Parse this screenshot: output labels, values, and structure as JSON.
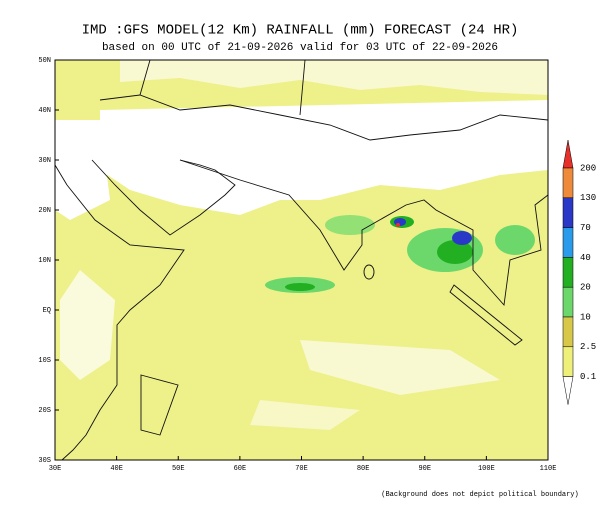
{
  "header": {
    "title": "IMD :GFS MODEL(12 Km) RAINFALL (mm) FORECAST (24 HR)",
    "subtitle": "based on 00 UTC of 21-09-2026 valid for 03 UTC of 22-09-2026"
  },
  "map": {
    "lat_labels": [
      "50N",
      "40N",
      "30N",
      "20N",
      "10N",
      "EQ",
      "10S",
      "20S",
      "30S"
    ],
    "lon_labels": [
      "30E",
      "40E",
      "50E",
      "60E",
      "70E",
      "80E",
      "90E",
      "100E",
      "110E"
    ]
  },
  "colorbar": {
    "levels": [
      200,
      130,
      70,
      40,
      20,
      10,
      2.5,
      0.1
    ],
    "colors": [
      "#e8302a",
      "#ee8a3a",
      "#2a38c8",
      "#2a9aea",
      "#22b022",
      "#6cd86c",
      "#d8c84a",
      "#eef07a",
      "#ffffff"
    ]
  },
  "footnote": "(Background does not depict political boundary)"
}
